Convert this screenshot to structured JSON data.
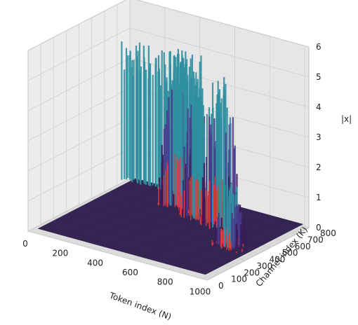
{
  "chart_data": {
    "type": "surface3d",
    "title": "",
    "xlabel": "Token index (N)",
    "ylabel": "Channel index (K)",
    "zlabel": "|x|",
    "xlim": [
      0,
      1024
    ],
    "ylim": [
      0,
      800
    ],
    "zlim": [
      0,
      6
    ],
    "x_ticks": [
      "0",
      "200",
      "400",
      "600",
      "800",
      "1000"
    ],
    "y_ticks": [
      "0",
      "100",
      "200",
      "300",
      "400",
      "500",
      "600",
      "700",
      "800"
    ],
    "z_ticks": [
      "0",
      "1",
      "2",
      "3",
      "4",
      "5",
      "6"
    ],
    "grid": true,
    "colormap": "magma-like (dark purple → teal, red highlights)",
    "features": [
      {
        "label": "wall",
        "token_range": [
          0,
          450
        ],
        "channel_range": [
          720,
          800
        ],
        "peak": 4.8
      },
      {
        "label": "peak",
        "token_range": [
          300,
          500
        ],
        "channel_range": [
          580,
          700
        ],
        "peak": 5.5
      },
      {
        "label": "peak",
        "token_range": [
          450,
          650
        ],
        "channel_range": [
          520,
          660
        ],
        "peak": 4.5
      },
      {
        "label": "peak",
        "token_range": [
          600,
          800
        ],
        "channel_range": [
          480,
          620
        ],
        "peak": 5.2
      },
      {
        "label": "peak",
        "token_range": [
          800,
          950
        ],
        "channel_range": [
          320,
          460
        ],
        "peak": 2.2
      }
    ]
  },
  "colors": {
    "pane": "#ececec",
    "grid": "#cfcfcf",
    "floor": "#2a1a4a",
    "ridge_low": "#3a1a5a",
    "ridge_mid": "#4a3c8c",
    "ridge_high": "#2f8fa0",
    "hot": "#e03a3a"
  }
}
